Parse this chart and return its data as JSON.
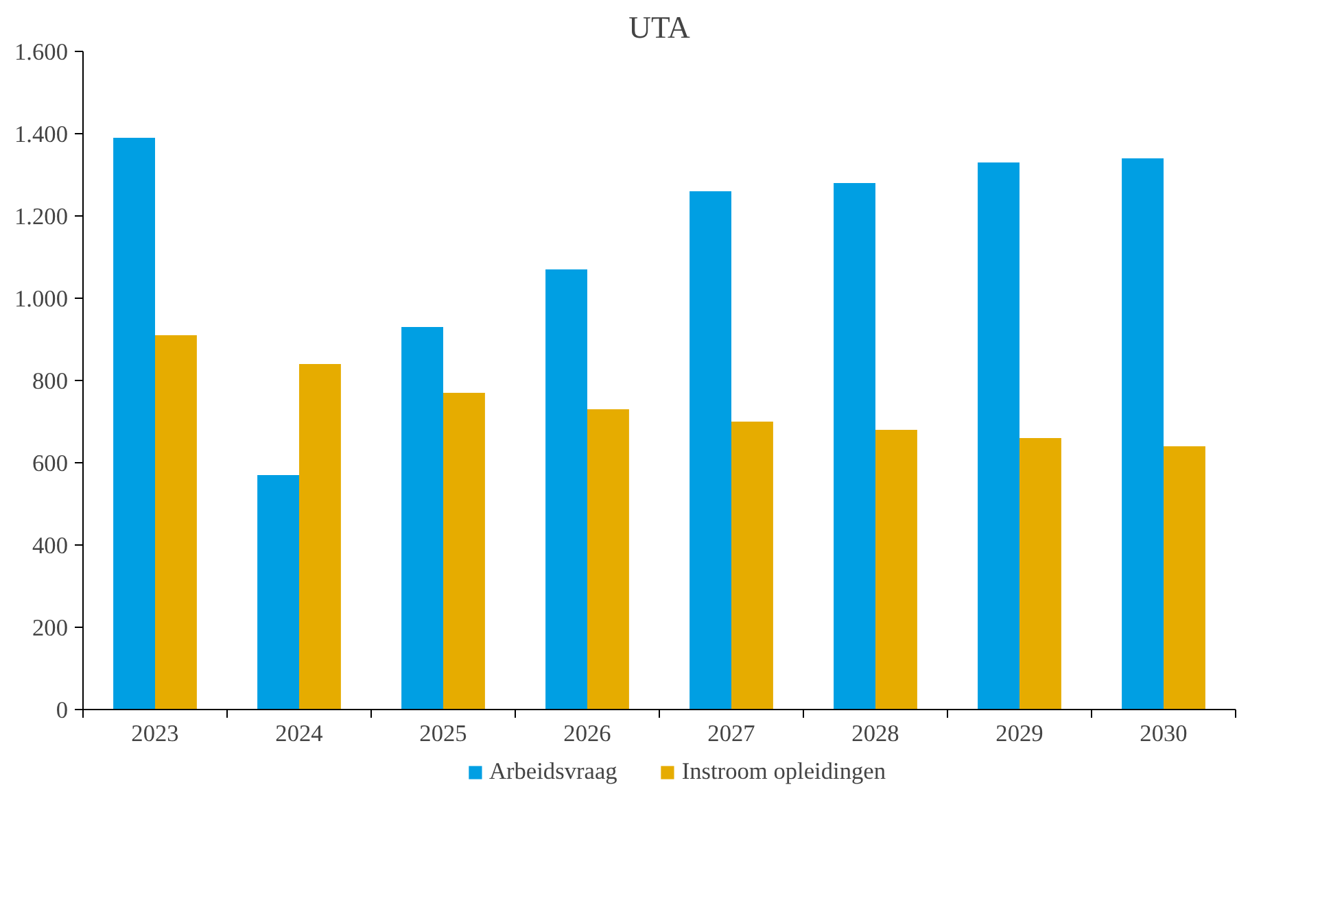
{
  "chart_data": {
    "type": "bar",
    "title": "UTA",
    "categories": [
      "2023",
      "2024",
      "2025",
      "2026",
      "2027",
      "2028",
      "2029",
      "2030"
    ],
    "series": [
      {
        "name": "Arbeidsvraag",
        "color": "#009fe3",
        "values": [
          1390,
          570,
          930,
          1070,
          1260,
          1280,
          1330,
          1340
        ]
      },
      {
        "name": "Instroom opleidingen",
        "color": "#e6ac00",
        "values": [
          910,
          840,
          770,
          730,
          700,
          680,
          660,
          640
        ]
      }
    ],
    "ylim": [
      0,
      1600
    ],
    "yticks": [
      0,
      200,
      400,
      600,
      800,
      {
        "value": 1000,
        "label": "1.000"
      },
      {
        "value": 1200,
        "label": "1.200"
      },
      {
        "value": 1400,
        "label": "1.400"
      },
      {
        "value": 1600,
        "label": "1.600"
      }
    ],
    "grid": false,
    "legend": "bottom"
  }
}
